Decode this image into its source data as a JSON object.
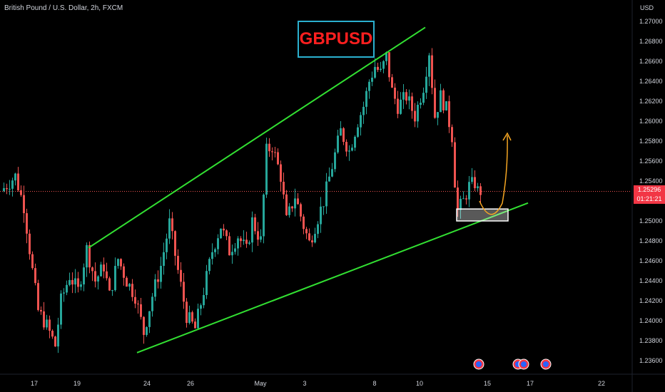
{
  "header": {
    "symbol_title": "British Pound / U.S. Dollar, 2h, FXCM",
    "currency": "USD"
  },
  "banner": {
    "text": "GBPUSD",
    "text_color": "#ff1f1f",
    "border_color": "#2bb0cf"
  },
  "price_marker": {
    "price": "1.25296",
    "countdown": "01:21:21",
    "color": "#f23645"
  },
  "colors": {
    "background": "#000000",
    "up_candle": "#26a69a",
    "down_candle": "#ef5350",
    "trendline": "#32e032",
    "projection": "#f5a623",
    "support_box": "#ffffff",
    "event_icon": "#2962ff"
  },
  "chart_data": {
    "type": "candlestick",
    "symbol": "GBPUSD",
    "timeframe": "2h",
    "y_axis": {
      "ticks": [
        "1.27000",
        "1.26800",
        "1.26600",
        "1.26400",
        "1.26200",
        "1.26000",
        "1.25800",
        "1.25600",
        "1.25400",
        "1.25200",
        "1.25000",
        "1.24800",
        "1.24600",
        "1.24400",
        "1.24200",
        "1.24000",
        "1.23800",
        "1.23600"
      ],
      "range": [
        1.2355,
        1.271
      ]
    },
    "x_axis": {
      "ticks": [
        "17",
        "19",
        "24",
        "26",
        "May",
        "3",
        "8",
        "10",
        "15",
        "17",
        "22"
      ]
    },
    "current_price": 1.25296,
    "price_path": [
      [
        0,
        1.253
      ],
      [
        5,
        1.2545
      ],
      [
        8,
        1.2515
      ],
      [
        11,
        1.245
      ],
      [
        13,
        1.241
      ],
      [
        16,
        1.2395
      ],
      [
        19,
        1.2375
      ],
      [
        21,
        1.242
      ],
      [
        24,
        1.2445
      ],
      [
        27,
        1.243
      ],
      [
        30,
        1.2472
      ],
      [
        33,
        1.244
      ],
      [
        36,
        1.2455
      ],
      [
        38,
        1.2425
      ],
      [
        41,
        1.2462
      ],
      [
        44,
        1.244
      ],
      [
        47,
        1.2425
      ],
      [
        50,
        1.2388
      ],
      [
        53,
        1.2425
      ],
      [
        56,
        1.2455
      ],
      [
        59,
        1.2498
      ],
      [
        62,
        1.245
      ],
      [
        65,
        1.2405
      ],
      [
        68,
        1.2392
      ],
      [
        71,
        1.243
      ],
      [
        74,
        1.247
      ],
      [
        77,
        1.2495
      ],
      [
        80,
        1.247
      ],
      [
        83,
        1.2485
      ],
      [
        86,
        1.247
      ],
      [
        88,
        1.25
      ],
      [
        91,
        1.248
      ],
      [
        93,
        1.257
      ],
      [
        95,
        1.2575
      ],
      [
        98,
        1.2545
      ],
      [
        100,
        1.25
      ],
      [
        103,
        1.2525
      ],
      [
        106,
        1.2495
      ],
      [
        108,
        1.2478
      ],
      [
        110,
        1.2495
      ],
      [
        113,
        1.252
      ],
      [
        116,
        1.2555
      ],
      [
        119,
        1.259
      ],
      [
        122,
        1.257
      ],
      [
        125,
        1.26
      ],
      [
        127,
        1.2615
      ],
      [
        129,
        1.264
      ],
      [
        131,
        1.2655
      ],
      [
        133,
        1.2648
      ],
      [
        135,
        1.2665
      ],
      [
        137,
        1.263
      ],
      [
        139,
        1.2615
      ],
      [
        142,
        1.2625
      ],
      [
        145,
        1.2605
      ],
      [
        148,
        1.2635
      ],
      [
        150,
        1.267
      ],
      [
        152,
        1.2605
      ],
      [
        154,
        1.2625
      ],
      [
        156,
        1.2612
      ],
      [
        158,
        1.2585
      ],
      [
        159,
        1.254
      ],
      [
        160,
        1.251
      ],
      [
        162,
        1.252
      ],
      [
        164,
        1.2535
      ],
      [
        166,
        1.2538
      ],
      [
        167,
        1.253
      ]
    ],
    "annotations": [
      {
        "type": "trendline",
        "label": "upper channel",
        "from": [
          30,
          1.2473
        ],
        "to": [
          148,
          1.2694
        ]
      },
      {
        "type": "trendline",
        "label": "lower channel",
        "from": [
          47,
          1.2368
        ],
        "to": [
          184,
          1.2518
        ]
      },
      {
        "type": "rectangle",
        "label": "support zone",
        "x": [
          159,
          177
        ],
        "y": [
          1.25,
          1.2512
        ]
      },
      {
        "type": "projection-arrow",
        "label": "projected move up"
      }
    ],
    "event_icons_count": 4,
    "grid": false
  }
}
